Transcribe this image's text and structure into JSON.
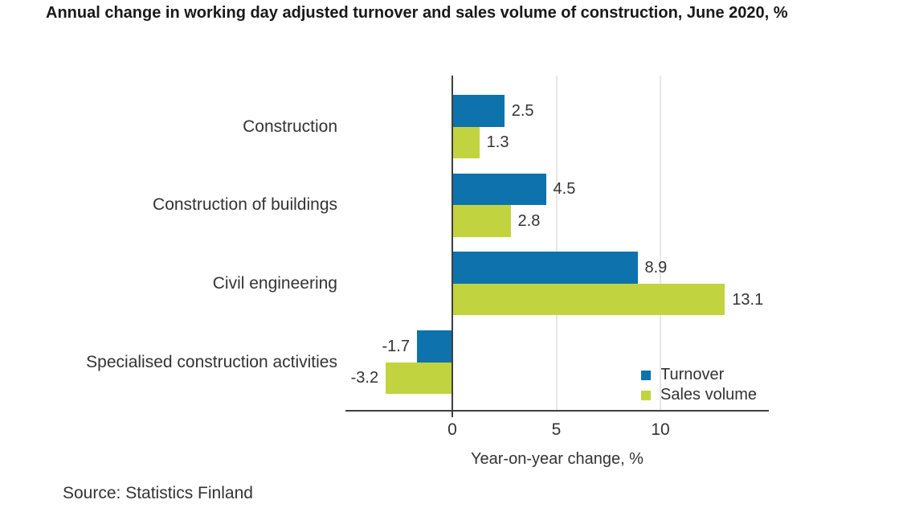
{
  "title": "Annual change in working day adjusted turnover and sales volume of construction, June 2020, %",
  "source": "Source: Statistics Finland",
  "colors": {
    "turnover": "#0E72AD",
    "sales_volume": "#C1D440",
    "axis": "#3f3f3f",
    "gridline": "#e7e7e7",
    "text": "#333333",
    "title_text": "#191919"
  },
  "chart_data": {
    "type": "bar",
    "orientation": "horizontal",
    "title": "Annual change in working day adjusted turnover and sales volume of construction, June 2020, %",
    "categories": [
      "Construction",
      "Construction of buildings",
      "Civil engineering",
      "Specialised construction activities"
    ],
    "series": [
      {
        "name": "Turnover",
        "color": "#0E72AD",
        "values": [
          2.5,
          4.5,
          8.9,
          -1.7
        ]
      },
      {
        "name": "Sales volume",
        "color": "#C1D440",
        "values": [
          1.3,
          2.8,
          13.1,
          -3.2
        ]
      }
    ],
    "xlabel": "Year-on-year change, %",
    "ylabel": "",
    "x_ticks": [
      0,
      5,
      10
    ],
    "xlim": [
      -5.1,
      15.2
    ],
    "grid": "vertical-at-ticks",
    "value_labels": "one-decimal, at bar ends",
    "legend_position": "inside-bottom-right"
  }
}
